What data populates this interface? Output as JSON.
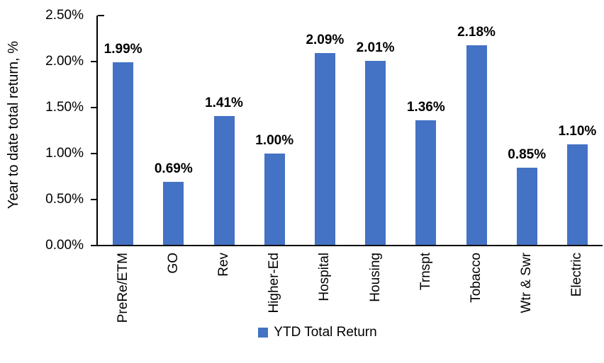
{
  "chart_data": {
    "type": "bar",
    "title": "",
    "categories": [
      "PreRe/ETM",
      "GO",
      "Rev",
      "Higher-Ed",
      "Hospital",
      "Housing",
      "Trnspt",
      "Tobacco",
      "Wtr & Swr",
      "Electric"
    ],
    "values": [
      1.99,
      0.69,
      1.41,
      1.0,
      2.09,
      2.01,
      1.36,
      2.18,
      0.85,
      1.1
    ],
    "data_labels": [
      "1.99%",
      "0.69%",
      "1.41%",
      "1.00%",
      "2.09%",
      "2.01%",
      "1.36%",
      "2.18%",
      "0.85%",
      "1.10%"
    ],
    "xlabel": "",
    "ylabel": "Year to date total return, %",
    "ylim": [
      0,
      2.5
    ],
    "ytick_step": 0.5,
    "ytick_labels": [
      "0.00%",
      "0.50%",
      "1.00%",
      "1.50%",
      "2.00%",
      "2.50%"
    ],
    "grid": false,
    "legend": {
      "position": "bottom",
      "entries": [
        {
          "label": "YTD Total Return",
          "color": "#4472C4"
        }
      ]
    },
    "bar_color": "#4472C4",
    "axis_color": "#000000"
  }
}
